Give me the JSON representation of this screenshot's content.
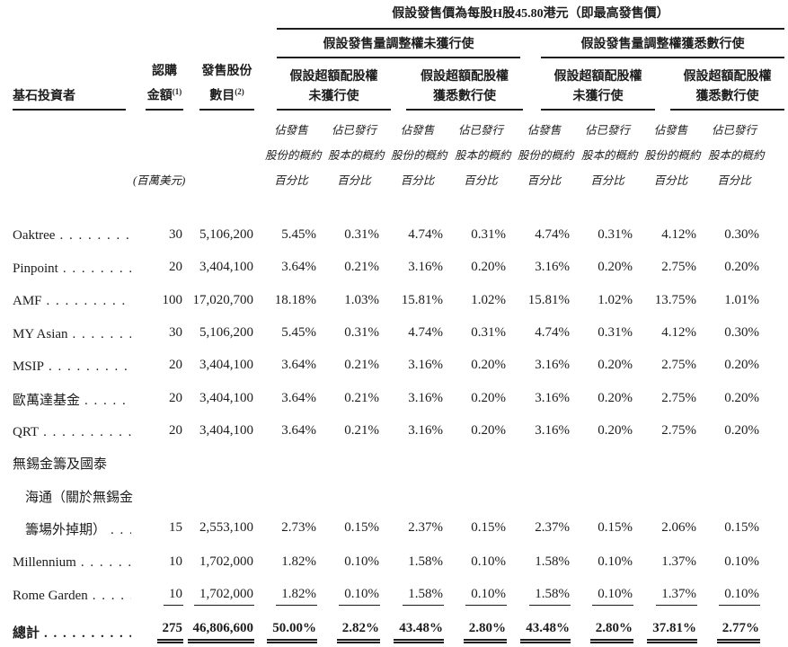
{
  "page": {
    "title_header": "假設發售價為每股H股45.80港元（即最高發售價）",
    "group_headers": {
      "left": "假設發售量調整權未獲行使",
      "right": "假設發售量調整權獲悉數行使"
    },
    "subgroup_headers": [
      {
        "line1": "假設超額配股權",
        "line2": "未獲行使"
      },
      {
        "line1": "假設超額配股權",
        "line2": "獲悉數行使"
      },
      {
        "line1": "假設超額配股權",
        "line2": "未獲行使"
      },
      {
        "line1": "假設超額配股權",
        "line2": "獲悉數行使"
      }
    ],
    "left_headers": {
      "investor": "基石投資者",
      "subscription_line1": "認購",
      "subscription_line2": "金額",
      "subscription_note_ref": "(1)",
      "shares_line1": "發售股份",
      "shares_line2": "數目",
      "shares_note_ref": "(2)",
      "currency_unit": "(百萬美元)"
    },
    "pct_headers": {
      "offer": [
        "佔發售",
        "股份的概約",
        "百分比"
      ],
      "issued": [
        "佔已發行",
        "股本的概約",
        "百分比"
      ]
    },
    "rows": [
      {
        "name_lines": [
          "Oaktree"
        ],
        "values": [
          "30",
          "5,106,200",
          "5.45%",
          "0.31%",
          "4.74%",
          "0.31%",
          "4.74%",
          "0.31%",
          "4.12%",
          "0.30%"
        ]
      },
      {
        "name_lines": [
          "Pinpoint"
        ],
        "values": [
          "20",
          "3,404,100",
          "3.64%",
          "0.21%",
          "3.16%",
          "0.20%",
          "3.16%",
          "0.20%",
          "2.75%",
          "0.20%"
        ]
      },
      {
        "name_lines": [
          "AMF"
        ],
        "values": [
          "100",
          "17,020,700",
          "18.18%",
          "1.03%",
          "15.81%",
          "1.02%",
          "15.81%",
          "1.02%",
          "13.75%",
          "1.01%"
        ]
      },
      {
        "name_lines": [
          "MY Asian"
        ],
        "values": [
          "30",
          "5,106,200",
          "5.45%",
          "0.31%",
          "4.74%",
          "0.31%",
          "4.74%",
          "0.31%",
          "4.12%",
          "0.30%"
        ]
      },
      {
        "name_lines": [
          "MSIP"
        ],
        "values": [
          "20",
          "3,404,100",
          "3.64%",
          "0.21%",
          "3.16%",
          "0.20%",
          "3.16%",
          "0.20%",
          "2.75%",
          "0.20%"
        ]
      },
      {
        "name_lines": [
          "歐萬達基金"
        ],
        "values": [
          "20",
          "3,404,100",
          "3.64%",
          "0.21%",
          "3.16%",
          "0.20%",
          "3.16%",
          "0.20%",
          "2.75%",
          "0.20%"
        ]
      },
      {
        "name_lines": [
          "QRT"
        ],
        "values": [
          "20",
          "3,404,100",
          "3.64%",
          "0.21%",
          "3.16%",
          "0.20%",
          "3.16%",
          "0.20%",
          "2.75%",
          "0.20%"
        ]
      },
      {
        "name_lines": [
          "無錫金籌及國泰",
          "海通（關於無錫金",
          "籌場外掉期）"
        ],
        "values": [
          "15",
          "2,553,100",
          "2.73%",
          "0.15%",
          "2.37%",
          "0.15%",
          "2.37%",
          "0.15%",
          "2.06%",
          "0.15%"
        ]
      },
      {
        "name_lines": [
          "Millennium"
        ],
        "values": [
          "10",
          "1,702,000",
          "1.82%",
          "0.10%",
          "1.58%",
          "0.10%",
          "1.58%",
          "0.10%",
          "1.37%",
          "0.10%"
        ]
      },
      {
        "name_lines": [
          "Rome Garden"
        ],
        "values": [
          "10",
          "1,702,000",
          "1.82%",
          "0.10%",
          "1.58%",
          "0.10%",
          "1.58%",
          "0.10%",
          "1.37%",
          "0.10%"
        ],
        "underline": true
      }
    ],
    "total": {
      "label": "總計",
      "values": [
        "275",
        "46,806,600",
        "50.00%",
        "2.82%",
        "43.48%",
        "2.80%",
        "43.48%",
        "2.80%",
        "37.81%",
        "2.77%"
      ]
    }
  }
}
